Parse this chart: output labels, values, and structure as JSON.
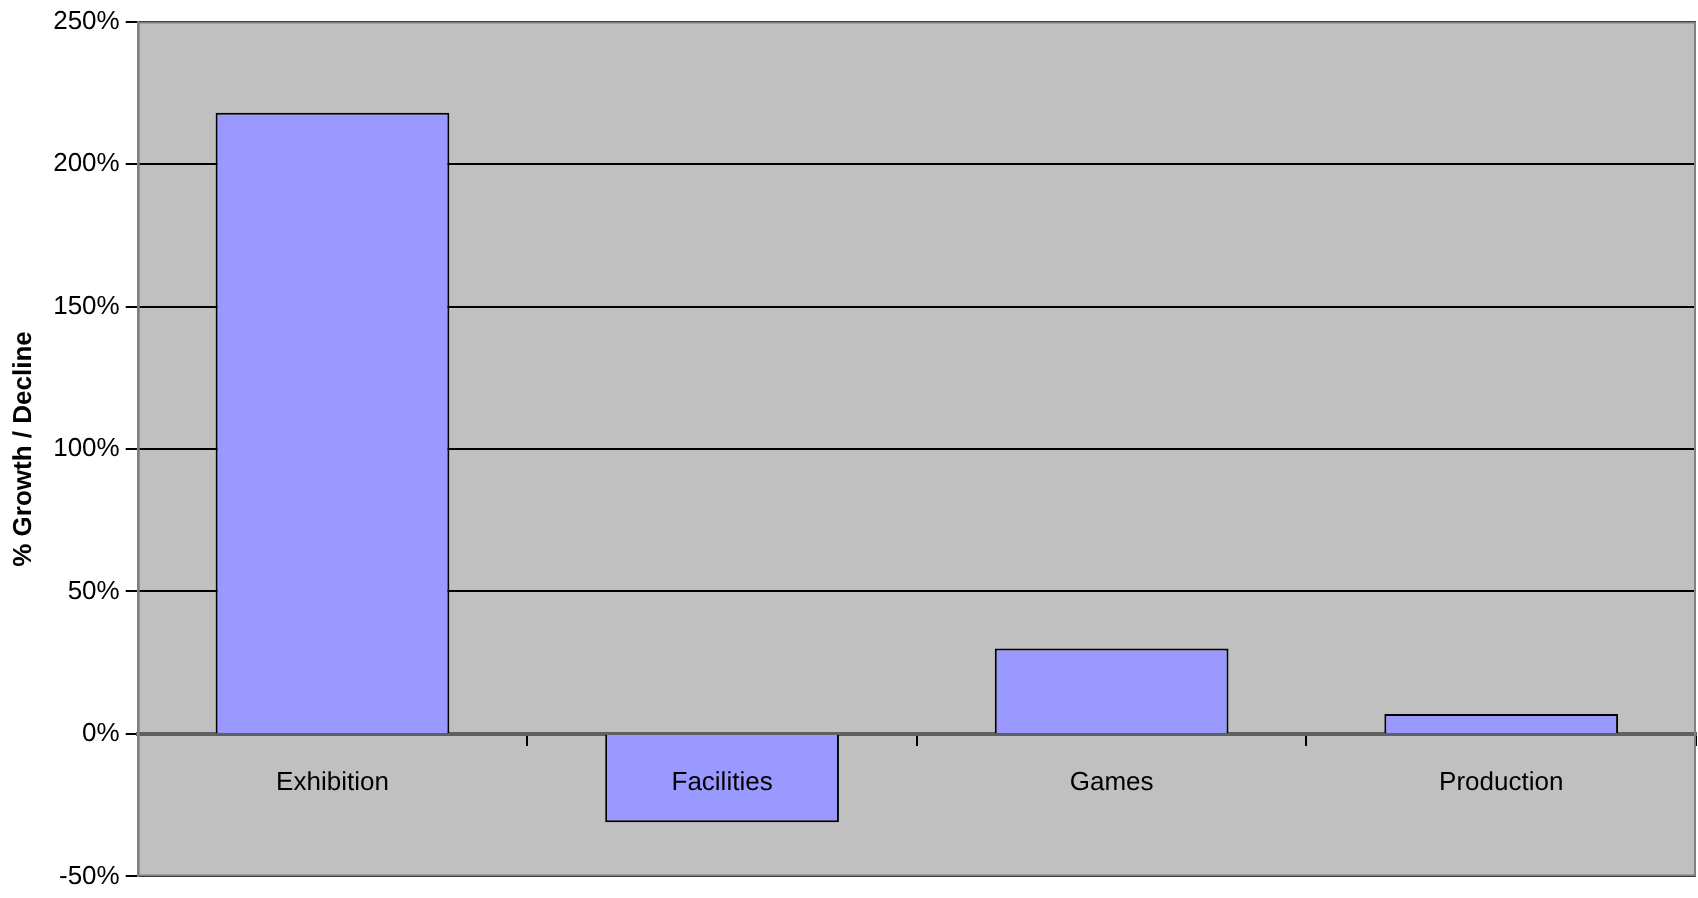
{
  "chart_data": {
    "type": "bar",
    "ylabel": "% Growth / Decline",
    "categories": [
      "Exhibition",
      "Facilities",
      "Games",
      "Production"
    ],
    "values": [
      218,
      -31,
      30,
      7
    ],
    "color": "#9999ff",
    "ylim": [
      -50,
      250
    ],
    "yticks": [
      {
        "value": -50,
        "label": "-50%"
      },
      {
        "value": 0,
        "label": "0%"
      },
      {
        "value": 50,
        "label": "50%"
      },
      {
        "value": 100,
        "label": "100%"
      },
      {
        "value": 150,
        "label": "150%"
      },
      {
        "value": 200,
        "label": "200%"
      },
      {
        "value": 250,
        "label": "250%"
      }
    ],
    "grid": "y",
    "legend": false
  }
}
